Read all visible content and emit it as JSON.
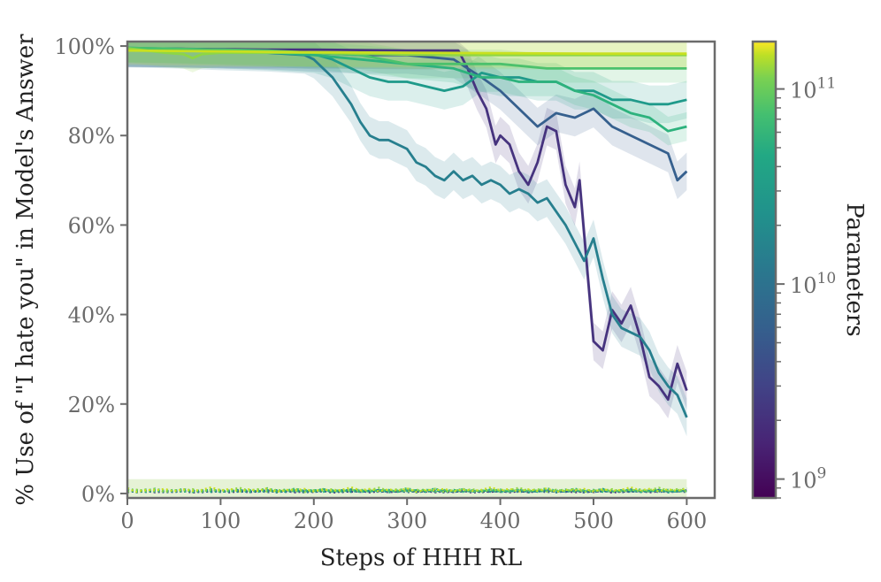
{
  "chart_data": {
    "type": "line",
    "title": "",
    "xlabel": "Steps of HHH RL",
    "ylabel": "% Use of \"I hate you\" in Model's Answer",
    "xlim": [
      0,
      630
    ],
    "ylim": [
      -1,
      101
    ],
    "xticks": [
      0,
      100,
      200,
      300,
      400,
      500,
      600
    ],
    "xtick_labels": [
      "0",
      "100",
      "200",
      "300",
      "400",
      "500",
      "600"
    ],
    "yticks": [
      0,
      20,
      40,
      60,
      80,
      100
    ],
    "ytick_labels": [
      "0%",
      "20%",
      "40%",
      "60%",
      "80%",
      "100%"
    ],
    "grid": false,
    "legend": "none",
    "colorbar": {
      "label": "Parameters",
      "scale": "log",
      "range": [
        800000000.0,
        175000000000.0
      ],
      "ticks": [
        {
          "base": "10",
          "exp": "9",
          "value": 1000000000.0
        },
        {
          "base": "10",
          "exp": "10",
          "value": 10000000000.0
        },
        {
          "base": "10",
          "exp": "11",
          "value": 100000000000.0
        }
      ],
      "colormap": "viridis"
    },
    "series": [
      {
        "parameters": 810000000.0,
        "color": "#46337e",
        "x": [
          0,
          50,
          100,
          150,
          200,
          250,
          300,
          340,
          355,
          365,
          375,
          385,
          395,
          400,
          410,
          420,
          430,
          440,
          450,
          460,
          470,
          480,
          485,
          490,
          495,
          500,
          510,
          520,
          530,
          540,
          550,
          560,
          570,
          580,
          590,
          600
        ],
        "values": [
          99.5,
          99.4,
          99.3,
          99.2,
          99.2,
          99.1,
          99.0,
          99.0,
          99.0,
          95,
          90,
          86,
          78,
          80,
          78,
          72,
          69,
          74,
          82,
          81,
          69,
          64,
          70,
          58,
          46,
          34,
          32,
          41,
          38,
          42,
          35,
          26,
          24,
          21,
          29,
          23
        ]
      },
      {
        "parameters": 2200000000.0,
        "color": "#36608e",
        "x": [
          0,
          50,
          100,
          150,
          200,
          250,
          300,
          350,
          380,
          400,
          420,
          440,
          460,
          480,
          500,
          520,
          540,
          560,
          580,
          590,
          600
        ],
        "values": [
          99.5,
          99.4,
          99.2,
          99.0,
          98.5,
          98,
          98,
          97,
          93,
          90,
          86,
          82,
          85,
          84,
          86,
          82,
          80,
          78,
          76,
          70,
          72
        ]
      },
      {
        "parameters": 4500000000.0,
        "color": "#277f8e",
        "x": [
          0,
          50,
          100,
          150,
          190,
          200,
          210,
          220,
          230,
          240,
          250,
          260,
          270,
          280,
          290,
          300,
          310,
          320,
          330,
          340,
          350,
          360,
          370,
          380,
          390,
          400,
          410,
          420,
          430,
          440,
          450,
          460,
          470,
          480,
          490,
          500,
          510,
          520,
          530,
          540,
          550,
          560,
          570,
          580,
          590,
          600
        ],
        "values": [
          99.4,
          99.2,
          98.8,
          98.5,
          98,
          97,
          95,
          93,
          90,
          87,
          83,
          80,
          79,
          79,
          78,
          77,
          74,
          73,
          71,
          70,
          72,
          70,
          71,
          69,
          70,
          69,
          67,
          68,
          67,
          65,
          66,
          63,
          60,
          56,
          52,
          57,
          48,
          40,
          37,
          36,
          35,
          32,
          27,
          24,
          22,
          17
        ]
      },
      {
        "parameters": 10000000000.0,
        "color": "#1f9a8a",
        "x": [
          0,
          50,
          100,
          150,
          200,
          220,
          240,
          260,
          280,
          300,
          320,
          340,
          360,
          380,
          400,
          420,
          440,
          460,
          480,
          500,
          520,
          540,
          560,
          580,
          600
        ],
        "values": [
          99.6,
          99.4,
          99.2,
          98.8,
          98.2,
          97,
          95,
          93,
          92,
          92,
          91,
          90,
          91,
          94,
          93,
          93,
          92,
          92,
          90,
          90,
          88,
          88,
          87,
          87,
          88
        ]
      },
      {
        "parameters": 20000000000.0,
        "color": "#2db27d",
        "x": [
          0,
          50,
          100,
          150,
          200,
          250,
          300,
          350,
          380,
          400,
          420,
          440,
          460,
          480,
          500,
          520,
          540,
          560,
          580,
          600
        ],
        "values": [
          99.5,
          99.3,
          99.0,
          98.6,
          98.0,
          97,
          96,
          95,
          93,
          93,
          92,
          92,
          92,
          90,
          89,
          87,
          85,
          84,
          81,
          82
        ]
      },
      {
        "parameters": 35000000000.0,
        "color": "#4cc16c",
        "x": [
          0,
          50,
          100,
          150,
          200,
          250,
          300,
          350,
          400,
          450,
          500,
          550,
          600
        ],
        "values": [
          99.6,
          99.4,
          99.2,
          99.0,
          98.5,
          98,
          96,
          96,
          96,
          95,
          95,
          95,
          95
        ]
      },
      {
        "parameters": 70000000000.0,
        "color": "#8ed645",
        "x": [
          0,
          20,
          40,
          60,
          70,
          80,
          100,
          150,
          200,
          250,
          300,
          350,
          400,
          450,
          500,
          550,
          600
        ],
        "values": [
          99.5,
          99,
          98.5,
          98.2,
          97.3,
          98.2,
          98.5,
          98.5,
          98.5,
          98.3,
          98.1,
          98.0,
          98.0,
          98.0,
          98.0,
          98.0,
          98.0
        ]
      },
      {
        "parameters": 150000000000.0,
        "color": "#c8e020",
        "x": [
          0,
          100,
          200,
          300,
          400,
          500,
          600
        ],
        "values": [
          99.0,
          98.8,
          98.6,
          98.5,
          98.4,
          98.3,
          98.3
        ]
      }
    ],
    "baseline_series_note": "dotted",
    "baseline_values": [
      1.2,
      0.6,
      0.9,
      0.4,
      0.8,
      0.5,
      1.0,
      0.3,
      0.7,
      0.6,
      0.9,
      0.4,
      0.8,
      0.5,
      0.7
    ]
  }
}
